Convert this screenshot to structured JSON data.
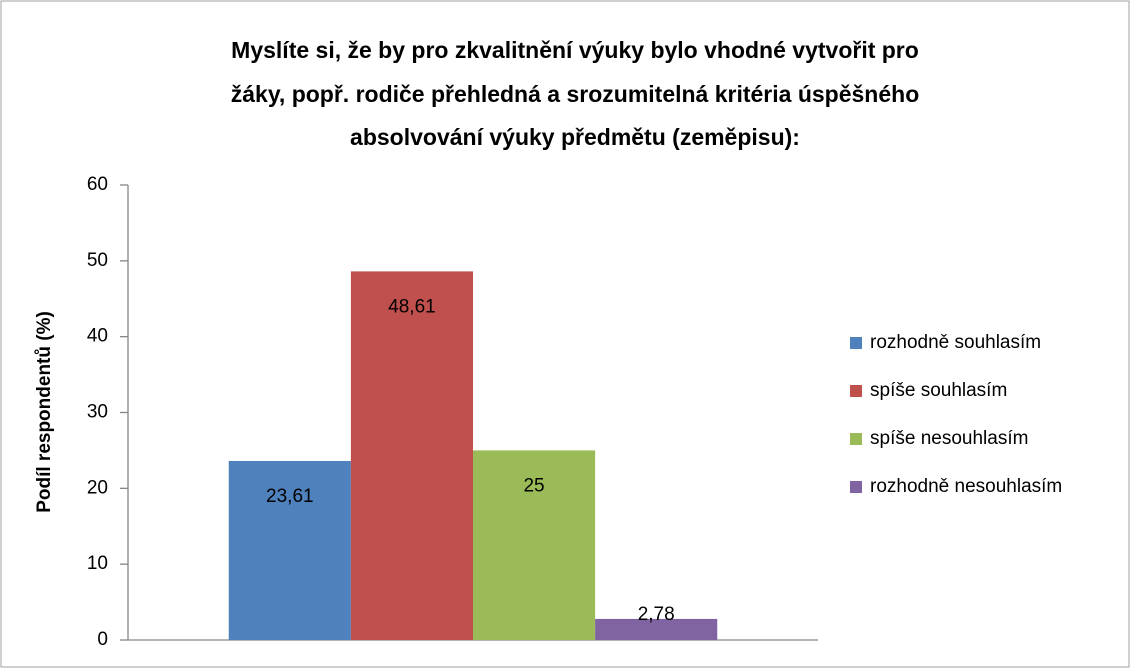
{
  "chart_data": {
    "type": "bar",
    "title": [
      "Myslíte si, že by pro zkvalitnění výuky bylo vhodné vytvořit pro",
      "žáky, popř. rodiče přehledná a srozumitelná kritéria úspěšného",
      "absolvování výuky předmětu (zeměpisu):"
    ],
    "y_label": "Podíl respondentů (%)",
    "categories": [
      null
    ],
    "series": [
      {
        "name": "rozhodně souhlasím",
        "color": "#4f81bd",
        "values": [
          23.61
        ],
        "value_labels": [
          "23,61"
        ]
      },
      {
        "name": "spíše souhlasím",
        "color": "#c0504d",
        "values": [
          48.61
        ],
        "value_labels": [
          "48,61"
        ]
      },
      {
        "name": "spíše nesouhlasím",
        "color": "#9bbb59",
        "values": [
          25
        ]
      },
      {
        "name": "rozhodně nesouhlasím",
        "color": "#8064a2",
        "values": [
          2.78
        ],
        "value_labels": [
          "2,78"
        ]
      }
    ],
    "ylim": [
      0,
      60
    ],
    "yticks": [
      0,
      10,
      20,
      30,
      40,
      50,
      60
    ],
    "grid": false,
    "legend": "right"
  }
}
